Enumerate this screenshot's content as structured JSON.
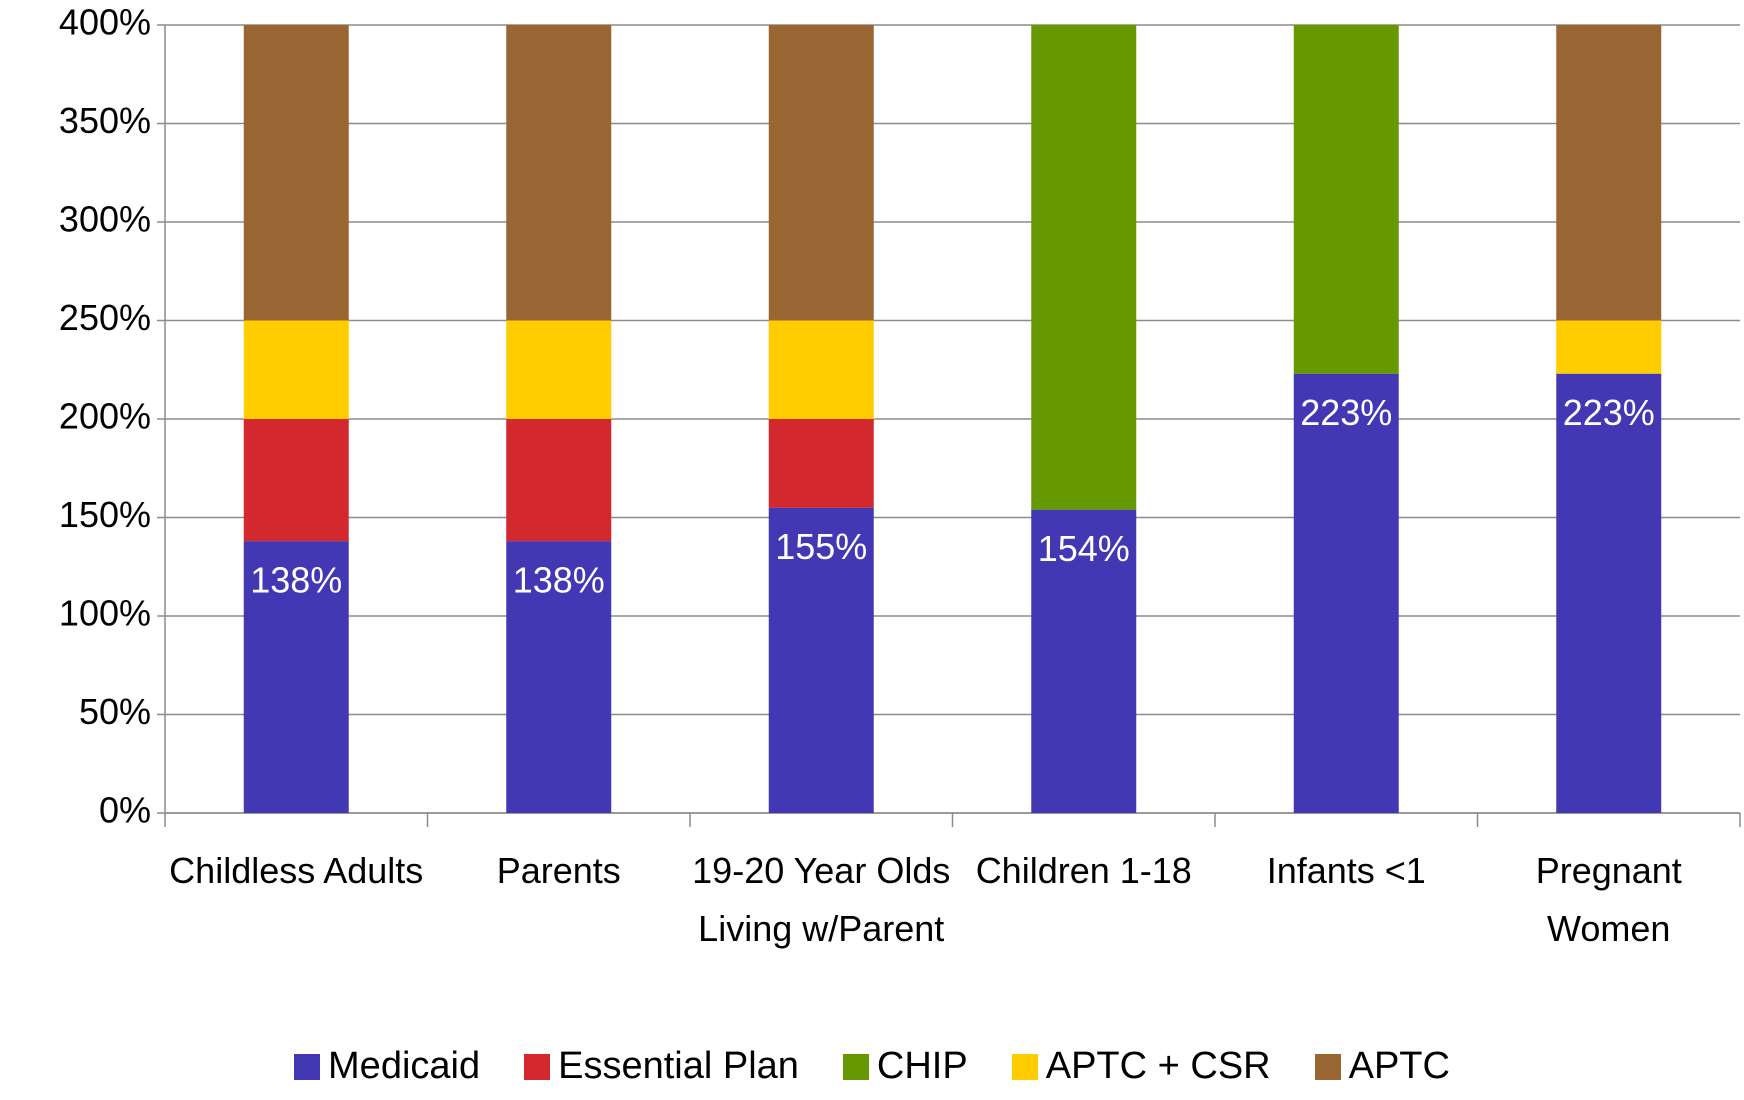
{
  "chart_data": {
    "type": "stacked_bar",
    "categories": [
      "Childless Adults",
      "Parents",
      "19-20 Year Olds Living w/Parent",
      "Children 1-18",
      "Infants <1",
      "Pregnant Women"
    ],
    "series": [
      {
        "name": "Medicaid",
        "color": "#4338b4",
        "values": [
          138,
          138,
          155,
          154,
          223,
          223
        ],
        "value_labels": [
          "138%",
          "138%",
          "155%",
          "154%",
          "223%",
          "223%"
        ]
      },
      {
        "name": "Essential Plan",
        "color": "#d2282e",
        "values": [
          62,
          62,
          45,
          0,
          0,
          0
        ]
      },
      {
        "name": "CHIP",
        "color": "#669900",
        "values": [
          0,
          0,
          0,
          246,
          177,
          0
        ]
      },
      {
        "name": "APTC + CSR",
        "color": "#ffcc00",
        "values": [
          50,
          50,
          50,
          0,
          0,
          27
        ]
      },
      {
        "name": "APTC",
        "color": "#996633",
        "values": [
          150,
          150,
          150,
          0,
          0,
          150
        ]
      }
    ],
    "ylim": [
      0,
      400
    ],
    "yticks": [
      {
        "value": 0,
        "label": "0%"
      },
      {
        "value": 50,
        "label": "50%"
      },
      {
        "value": 100,
        "label": "100%"
      },
      {
        "value": 150,
        "label": "150%"
      },
      {
        "value": 200,
        "label": "200%"
      },
      {
        "value": 250,
        "label": "250%"
      },
      {
        "value": 300,
        "label": "300%"
      },
      {
        "value": 350,
        "label": "350%"
      },
      {
        "value": 400,
        "label": "400%"
      }
    ],
    "grid": true,
    "legend": "bottom"
  }
}
